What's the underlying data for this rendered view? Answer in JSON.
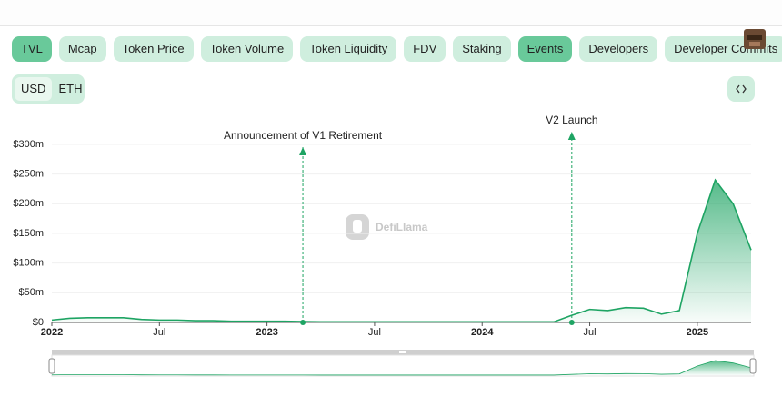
{
  "tabs": [
    {
      "label": "TVL",
      "active": true
    },
    {
      "label": "Mcap",
      "active": false
    },
    {
      "label": "Token Price",
      "active": false
    },
    {
      "label": "Token Volume",
      "active": false
    },
    {
      "label": "Token Liquidity",
      "active": false
    },
    {
      "label": "FDV",
      "active": false
    },
    {
      "label": "Staking",
      "active": false
    },
    {
      "label": "Events",
      "active": true
    },
    {
      "label": "Developers",
      "active": false
    },
    {
      "label": "Developer Commits",
      "active": false
    }
  ],
  "currency": [
    {
      "label": "USD",
      "active": true
    },
    {
      "label": "ETH",
      "active": false
    }
  ],
  "watermark": "DefiLlama",
  "chart_data": {
    "type": "area",
    "color": "#1ea463",
    "grid": true,
    "x": [
      "2022-01",
      "2022-02",
      "2022-03",
      "2022-04",
      "2022-05",
      "2022-06",
      "2022-07",
      "2022-08",
      "2022-09",
      "2022-10",
      "2022-11",
      "2022-12",
      "2023-01",
      "2023-02",
      "2023-03",
      "2023-04",
      "2023-05",
      "2023-06",
      "2023-07",
      "2023-08",
      "2023-09",
      "2023-10",
      "2023-11",
      "2023-12",
      "2024-01",
      "2024-02",
      "2024-03",
      "2024-04",
      "2024-05",
      "2024-06",
      "2024-07",
      "2024-08",
      "2024-09",
      "2024-10",
      "2024-11",
      "2024-12",
      "2025-01",
      "2025-02",
      "2025-03",
      "2025-04"
    ],
    "values": [
      4,
      7,
      8,
      8,
      8,
      5,
      4,
      4,
      3,
      3,
      2,
      2,
      2,
      2,
      1.5,
      1,
      1,
      1,
      1,
      1,
      1,
      1,
      1,
      1,
      1,
      1,
      1,
      1,
      1,
      12,
      22,
      20,
      25,
      24,
      14,
      20,
      150,
      240,
      200,
      122
    ],
    "xlim": [
      "2022-01",
      "2025-04"
    ],
    "xticks": [
      {
        "value": "2022-01",
        "label": "2022"
      },
      {
        "value": "2022-07",
        "label": "Jul"
      },
      {
        "value": "2023-01",
        "label": "2023"
      },
      {
        "value": "2023-07",
        "label": "Jul"
      },
      {
        "value": "2024-01",
        "label": "2024"
      },
      {
        "value": "2024-07",
        "label": "Jul"
      },
      {
        "value": "2025-01",
        "label": "2025"
      }
    ],
    "ylim": [
      0,
      300
    ],
    "yticks": [
      {
        "value": 0,
        "label": "$0"
      },
      {
        "value": 50,
        "label": "$50m"
      },
      {
        "value": 100,
        "label": "$100m"
      },
      {
        "value": 150,
        "label": "$150m"
      },
      {
        "value": 200,
        "label": "$200m"
      },
      {
        "value": 250,
        "label": "$250m"
      },
      {
        "value": 300,
        "label": "$300m"
      }
    ],
    "events": [
      {
        "label": "Announcement of V1 Retirement",
        "x": "2023-03"
      },
      {
        "label": "V2 Launch",
        "x": "2024-06"
      }
    ]
  }
}
